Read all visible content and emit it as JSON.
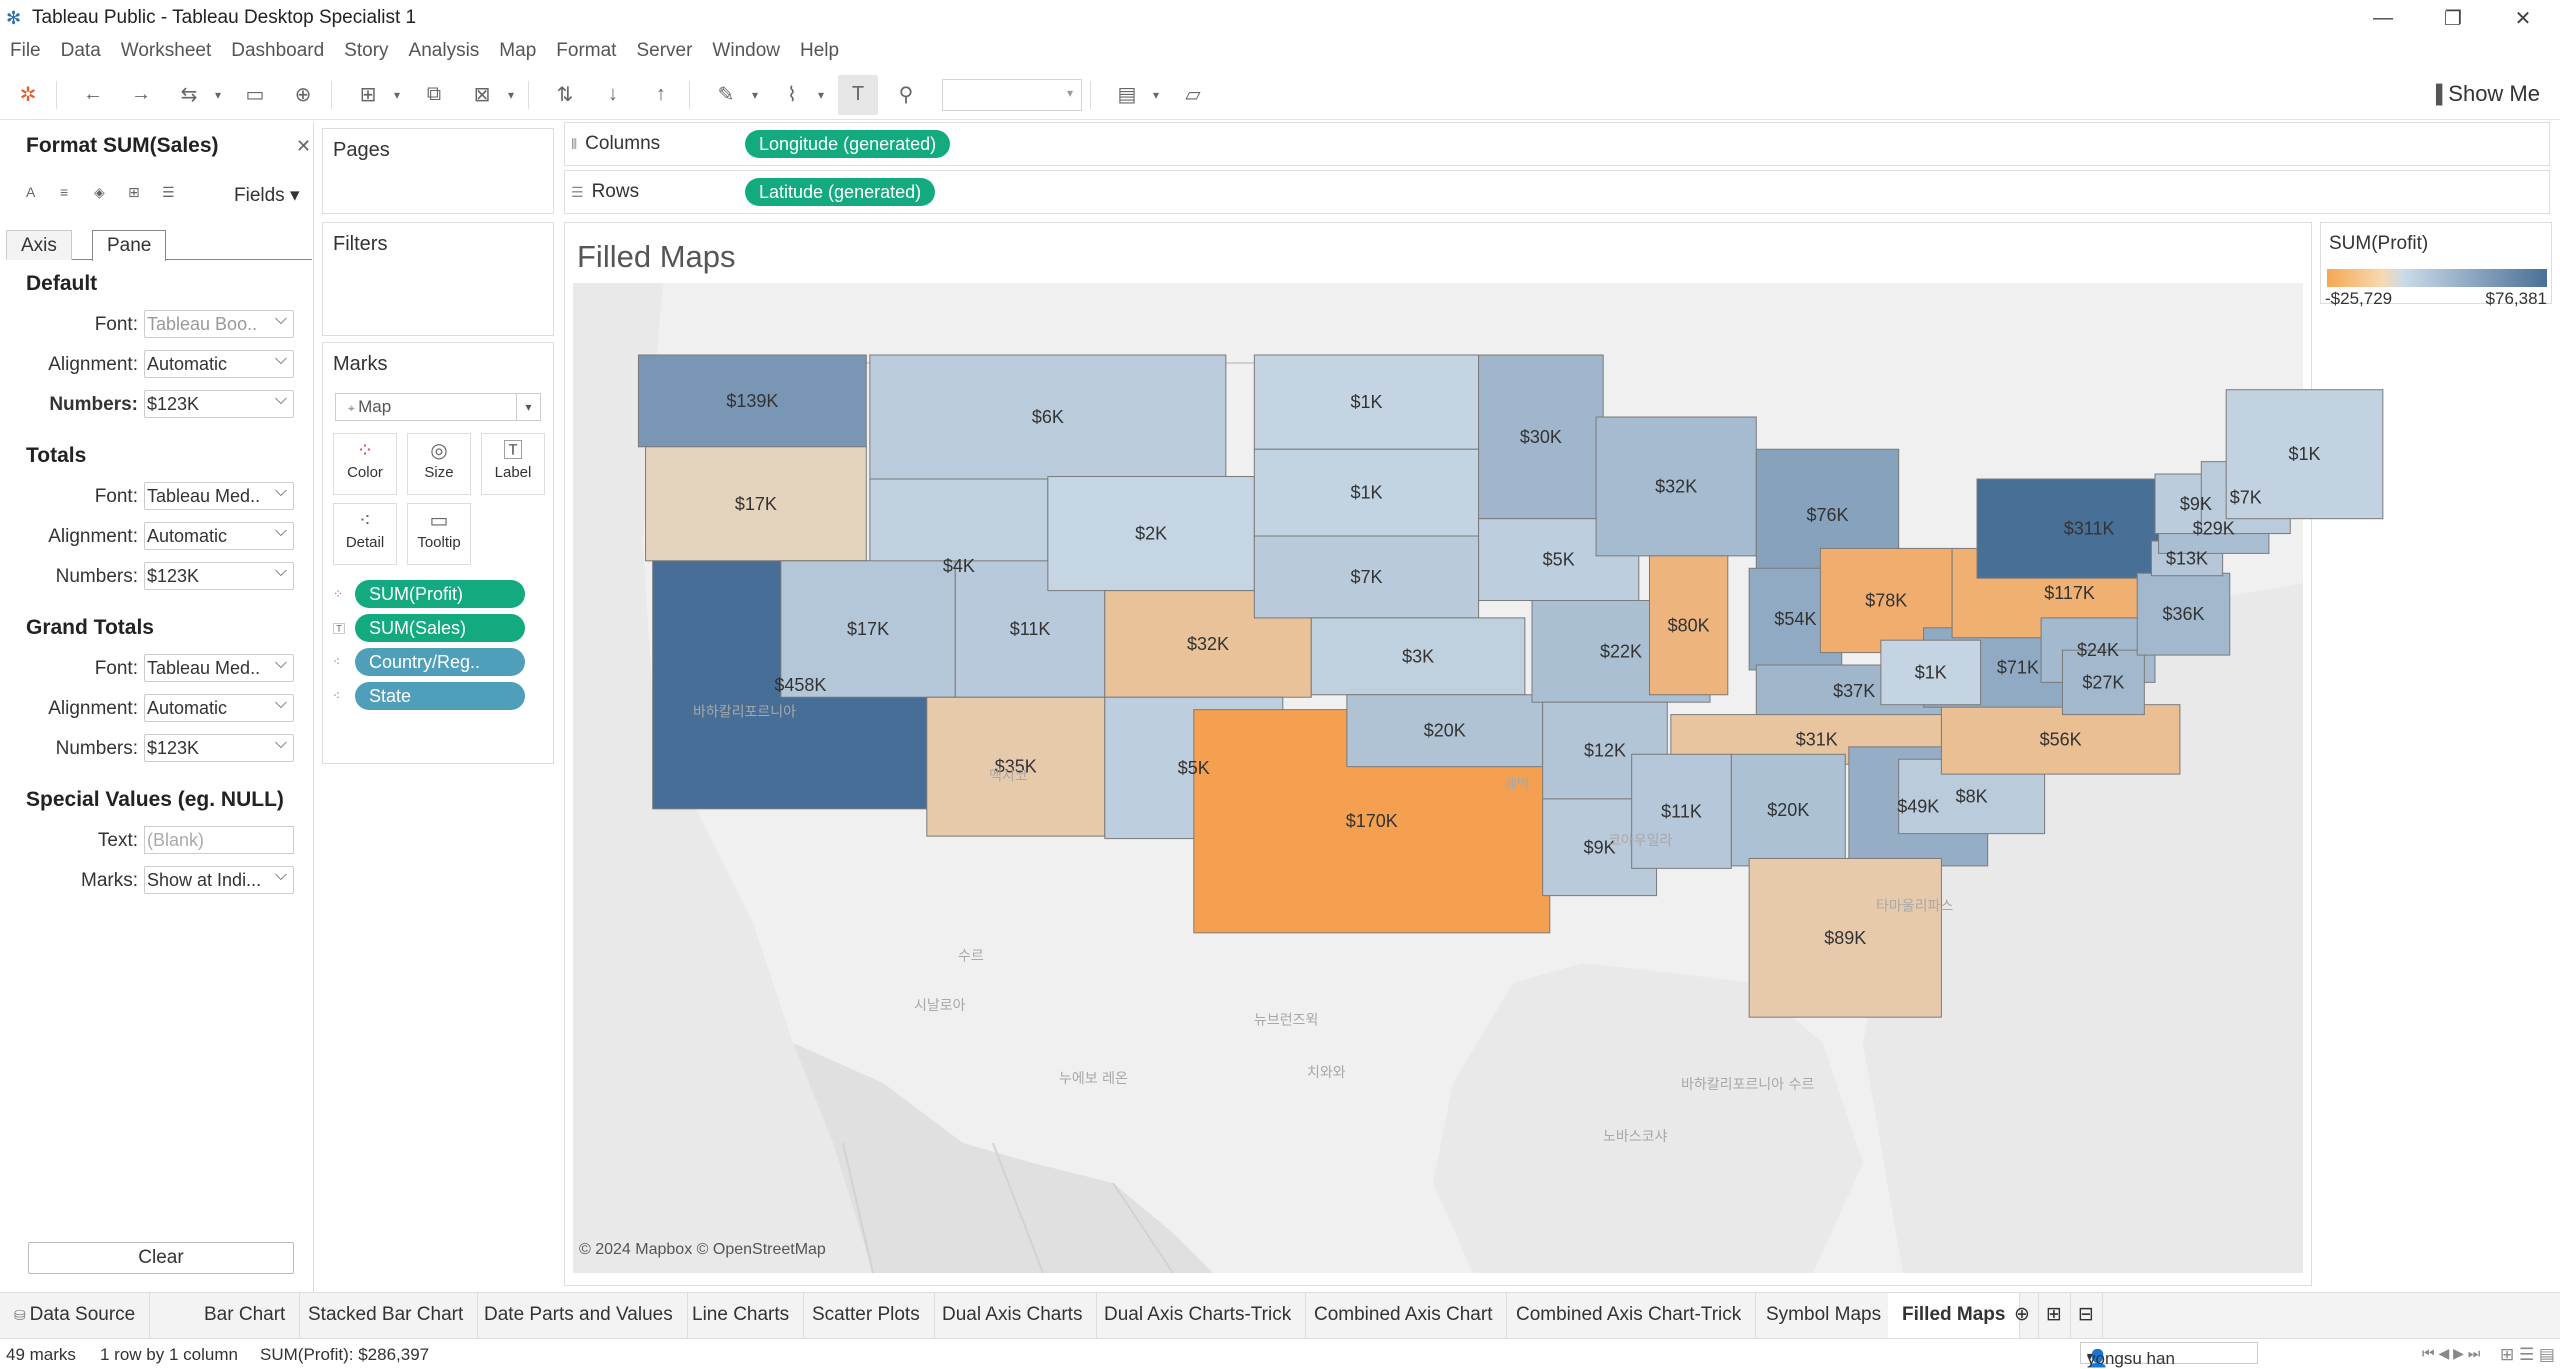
{
  "window": {
    "title": "Tableau Public - Tableau Desktop Specialist 1"
  },
  "menu": [
    "File",
    "Data",
    "Worksheet",
    "Dashboard",
    "Story",
    "Analysis",
    "Map",
    "Format",
    "Server",
    "Window",
    "Help"
  ],
  "toolbar": {
    "show_me": "Show Me"
  },
  "format_pane": {
    "title": "Format SUM(Sales)",
    "fields_label": "Fields",
    "tabs": [
      "Axis",
      "Pane"
    ],
    "default": {
      "heading": "Default",
      "font_label": "Font:",
      "font": "Tableau Boo..",
      "alignment_label": "Alignment:",
      "alignment": "Automatic",
      "numbers_label": "Numbers:",
      "numbers": "$123K"
    },
    "totals": {
      "heading": "Totals",
      "font_label": "Font:",
      "font": "Tableau Med..",
      "alignment_label": "Alignment:",
      "alignment": "Automatic",
      "numbers_label": "Numbers:",
      "numbers": "$123K"
    },
    "grand_totals": {
      "heading": "Grand Totals",
      "font_label": "Font:",
      "font": "Tableau Med..",
      "alignment_label": "Alignment:",
      "alignment": "Automatic",
      "numbers_label": "Numbers:",
      "numbers": "$123K"
    },
    "special": {
      "heading": "Special Values (eg. NULL)",
      "text_label": "Text:",
      "text_placeholder": "(Blank)",
      "marks_label": "Marks:",
      "marks": "Show at Indi..."
    },
    "clear": "Clear"
  },
  "pages": {
    "title": "Pages"
  },
  "filters": {
    "title": "Filters"
  },
  "marks": {
    "title": "Marks",
    "type": "Map",
    "buttons": [
      "Color",
      "Size",
      "Label",
      "Detail",
      "Tooltip"
    ],
    "pills": [
      "SUM(Profit)",
      "SUM(Sales)",
      "Country/Reg..",
      "State"
    ]
  },
  "columns": {
    "label": "Columns",
    "pill": "Longitude (generated)"
  },
  "rows": {
    "label": "Rows",
    "pill": "Latitude (generated)"
  },
  "sheet": {
    "title": "Filled Maps",
    "attribution": "© 2024 Mapbox © OpenStreetMap"
  },
  "map_places": [
    "바하칼리포르니아",
    "수르",
    "치와와",
    "코아우일라",
    "바하칼리포르니아 수르",
    "시날로아",
    "누에보 레온",
    "타마울리파스",
    "멕시코",
    "뉴브런즈윅",
    "노바스코샤",
    "퀘벡"
  ],
  "states": [
    {
      "label": "$139K",
      "profit": 33403
    },
    {
      "label": "$17K",
      "profit": -1190
    },
    {
      "label": "$458K",
      "profit": 76381
    },
    {
      "label": "$6K",
      "profit": 1834
    },
    {
      "label": "$4K",
      "profit": 827
    },
    {
      "label": "$17K",
      "profit": 3316
    },
    {
      "label": "$11K",
      "profit": 2547
    },
    {
      "label": "$35K",
      "profit": -3427
    },
    {
      "label": "$2K",
      "profit": 100
    },
    {
      "label": "$32K",
      "profit": -6528
    },
    {
      "label": "$5K",
      "profit": 1157
    },
    {
      "label": "$170K",
      "profit": -25729
    },
    {
      "label": "$1K",
      "profit": 230
    },
    {
      "label": "$1K",
      "profit": 394
    },
    {
      "label": "$7K",
      "profit": 2037
    },
    {
      "label": "$3K",
      "profit": 836
    },
    {
      "label": "$20K",
      "profit": 4853
    },
    {
      "label": "$30K",
      "profit": 10823
    },
    {
      "label": "$5K",
      "profit": 1184
    },
    {
      "label": "$22K",
      "profit": 6436
    },
    {
      "label": "$12K",
      "profit": 4009
    },
    {
      "label": "$9K",
      "profit": 2196
    },
    {
      "label": "$32K",
      "profit": 8402
    },
    {
      "label": "$80K",
      "profit": -12608
    },
    {
      "label": "$76K",
      "profit": 24463
    },
    {
      "label": "$54K",
      "profit": 18383
    },
    {
      "label": "$78K",
      "profit": -16971
    },
    {
      "label": "$37K",
      "profit": 11199
    },
    {
      "label": "$31K",
      "profit": -5341
    },
    {
      "label": "$11K",
      "profit": 3172
    },
    {
      "label": "$20K",
      "profit": 5787
    },
    {
      "label": "$49K",
      "profit": 16250
    },
    {
      "label": "$89K",
      "profit": -3399
    },
    {
      "label": "$8K",
      "profit": 1769
    },
    {
      "label": "$56K",
      "profit": -7491
    },
    {
      "label": "$71K",
      "profit": 18598
    },
    {
      "label": "$1K",
      "profit": 186
    },
    {
      "label": "$117K",
      "profit": -15560
    },
    {
      "label": "$311K",
      "profit": 74039
    },
    {
      "label": "$24K",
      "profit": 9217
    },
    {
      "label": "$27K",
      "profit": 9977
    },
    {
      "label": "$36K",
      "profit": 9773
    },
    {
      "label": "$13K",
      "profit": 3511
    },
    {
      "label": "$29K",
      "profit": 6786
    },
    {
      "label": "$9K",
      "profit": 1706
    },
    {
      "label": "$7K",
      "profit": 1831
    },
    {
      "label": "$1K",
      "profit": 454
    }
  ],
  "legend": {
    "title": "SUM(Profit)",
    "min": "-$25,729",
    "max": "$76,381",
    "min_value": -25729,
    "max_value": 76381
  },
  "sheet_tabs": [
    "Data Source",
    "Bar Chart",
    "Stacked Bar Chart",
    "Date Parts and Values",
    "Line Charts",
    "Scatter Plots",
    "Dual Axis Charts",
    "Dual Axis Charts-Trick",
    "Combined Axis Chart",
    "Combined Axis Chart-Trick",
    "Symbol Maps",
    "Filled Maps"
  ],
  "status": {
    "marks": "49 marks",
    "rows": "1 row by 1 column",
    "sum": "SUM(Profit): $286,397",
    "user": "yongsu han"
  }
}
